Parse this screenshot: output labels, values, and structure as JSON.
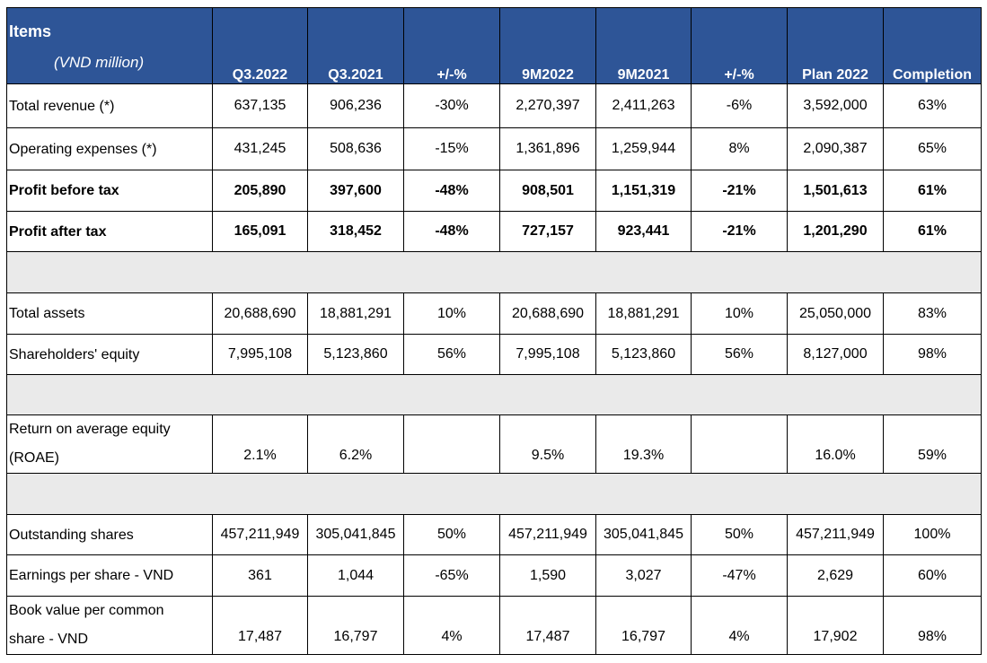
{
  "header": {
    "items_title": "Items",
    "items_unit": "(VND million)",
    "columns": [
      "Q3.2022",
      "Q3.2021",
      "+/-%",
      "9M2022",
      "9M2021",
      "+/-%",
      "Plan 2022",
      "Completion"
    ]
  },
  "rows": {
    "total_revenue": {
      "label": "Total revenue (*)",
      "values": [
        "637,135",
        "906,236",
        "-30%",
        "2,270,397",
        "2,411,263",
        "-6%",
        "3,592,000",
        "63%"
      ]
    },
    "operating_expenses": {
      "label": "Operating expenses (*)",
      "values": [
        "431,245",
        "508,636",
        "-15%",
        "1,361,896",
        "1,259,944",
        "8%",
        "2,090,387",
        "65%"
      ]
    },
    "profit_before_tax": {
      "label": "Profit before tax",
      "values": [
        "205,890",
        "397,600",
        "-48%",
        "908,501",
        "1,151,319",
        "-21%",
        "1,501,613",
        "61%"
      ]
    },
    "profit_after_tax": {
      "label": "Profit after tax",
      "values": [
        "165,091",
        "318,452",
        "-48%",
        "727,157",
        "923,441",
        "-21%",
        "1,201,290",
        "61%"
      ]
    },
    "total_assets": {
      "label": "Total assets",
      "values": [
        "20,688,690",
        "18,881,291",
        "10%",
        "20,688,690",
        "18,881,291",
        "10%",
        "25,050,000",
        "83%"
      ]
    },
    "shareholders_equity": {
      "label": "Shareholders' equity",
      "values": [
        "7,995,108",
        "5,123,860",
        "56%",
        "7,995,108",
        "5,123,860",
        "56%",
        "8,127,000",
        "98%"
      ]
    },
    "roae": {
      "label_line1": "Return on average equity",
      "label_line2": "(ROAE)",
      "values": [
        "2.1%",
        "6.2%",
        "",
        "9.5%",
        "19.3%",
        "",
        "16.0%",
        "59%"
      ]
    },
    "outstanding_shares": {
      "label": "Outstanding shares",
      "values": [
        "457,211,949",
        "305,041,845",
        "50%",
        "457,211,949",
        "305,041,845",
        "50%",
        "457,211,949",
        "100%"
      ]
    },
    "eps": {
      "label": "Earnings per share - VND",
      "values": [
        "361",
        "1,044",
        "-65%",
        "1,590",
        "3,027",
        "-47%",
        "2,629",
        "60%"
      ]
    },
    "bvps": {
      "label_line1": "Book value per common",
      "label_line2": "share - VND",
      "values": [
        "17,487",
        "16,797",
        "4%",
        "17,487",
        "16,797",
        "4%",
        "17,902",
        "98%"
      ]
    }
  }
}
